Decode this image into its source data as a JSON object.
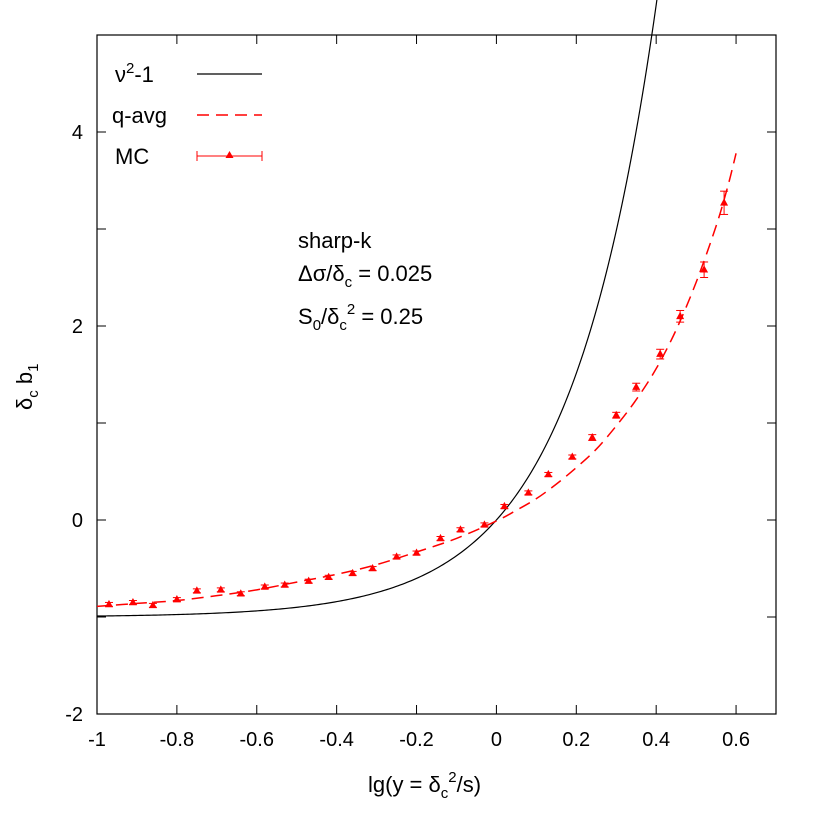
{
  "chart_data": {
    "type": "line",
    "title": "",
    "xlabel": "lg(y = δc²/s)",
    "ylabel": "δc b1",
    "xlim": [
      -1,
      0.7
    ],
    "ylim": [
      -2,
      5
    ],
    "xticks": [
      -1,
      -0.8,
      -0.6,
      -0.4,
      -0.2,
      0,
      0.2,
      0.4,
      0.6
    ],
    "xtick_labels": [
      "-1",
      "-0.8",
      "-0.6",
      "-0.4",
      "-0.2",
      "0",
      "0.2",
      "0.4",
      "0.6"
    ],
    "yticks": [
      -2,
      0,
      2,
      4
    ],
    "ytick_labels": [
      "-2",
      "0",
      "2",
      "4"
    ],
    "grid": false,
    "legend_position": "top-left",
    "annotations": [
      "sharp-k",
      "Δσ/δc = 0.025",
      "S0/δc² = 0.25"
    ],
    "series": [
      {
        "name": "ν²-1",
        "style": "solid",
        "color": "#000000",
        "function": "10^(2x) - 1"
      },
      {
        "name": "q-avg",
        "style": "dashed",
        "color": "#ff0000",
        "x": [
          -1.0,
          -0.9,
          -0.8,
          -0.7,
          -0.6,
          -0.5,
          -0.4,
          -0.3,
          -0.2,
          -0.1,
          0.0,
          0.05,
          0.1,
          0.15,
          0.2,
          0.25,
          0.3,
          0.35,
          0.4,
          0.45,
          0.5,
          0.55,
          0.58,
          0.6
        ],
        "y": [
          -0.89,
          -0.86,
          -0.83,
          -0.78,
          -0.72,
          -0.64,
          -0.56,
          -0.46,
          -0.33,
          -0.19,
          -0.01,
          0.1,
          0.22,
          0.37,
          0.54,
          0.73,
          0.97,
          1.24,
          1.56,
          1.96,
          2.45,
          3.03,
          3.45,
          3.78
        ]
      },
      {
        "name": "MC",
        "style": "points-errorbars",
        "color": "#ff0000",
        "x": [
          -0.97,
          -0.91,
          -0.86,
          -0.8,
          -0.75,
          -0.69,
          -0.64,
          -0.58,
          -0.53,
          -0.47,
          -0.42,
          -0.36,
          -0.31,
          -0.25,
          -0.2,
          -0.14,
          -0.09,
          -0.03,
          0.02,
          0.08,
          0.13,
          0.19,
          0.24,
          0.3,
          0.35,
          0.41,
          0.46,
          0.52,
          0.57
        ],
        "y": [
          -0.87,
          -0.85,
          -0.88,
          -0.82,
          -0.73,
          -0.72,
          -0.76,
          -0.69,
          -0.67,
          -0.63,
          -0.59,
          -0.55,
          -0.5,
          -0.38,
          -0.34,
          -0.19,
          -0.1,
          -0.05,
          0.14,
          0.28,
          0.47,
          0.65,
          0.85,
          1.08,
          1.37,
          1.71,
          2.1,
          2.58,
          3.27
        ],
        "err": [
          0.02,
          0.02,
          0.02,
          0.02,
          0.02,
          0.02,
          0.02,
          0.02,
          0.02,
          0.02,
          0.02,
          0.02,
          0.02,
          0.02,
          0.02,
          0.02,
          0.02,
          0.02,
          0.02,
          0.02,
          0.02,
          0.02,
          0.03,
          0.03,
          0.04,
          0.05,
          0.06,
          0.08,
          0.12
        ]
      }
    ]
  }
}
